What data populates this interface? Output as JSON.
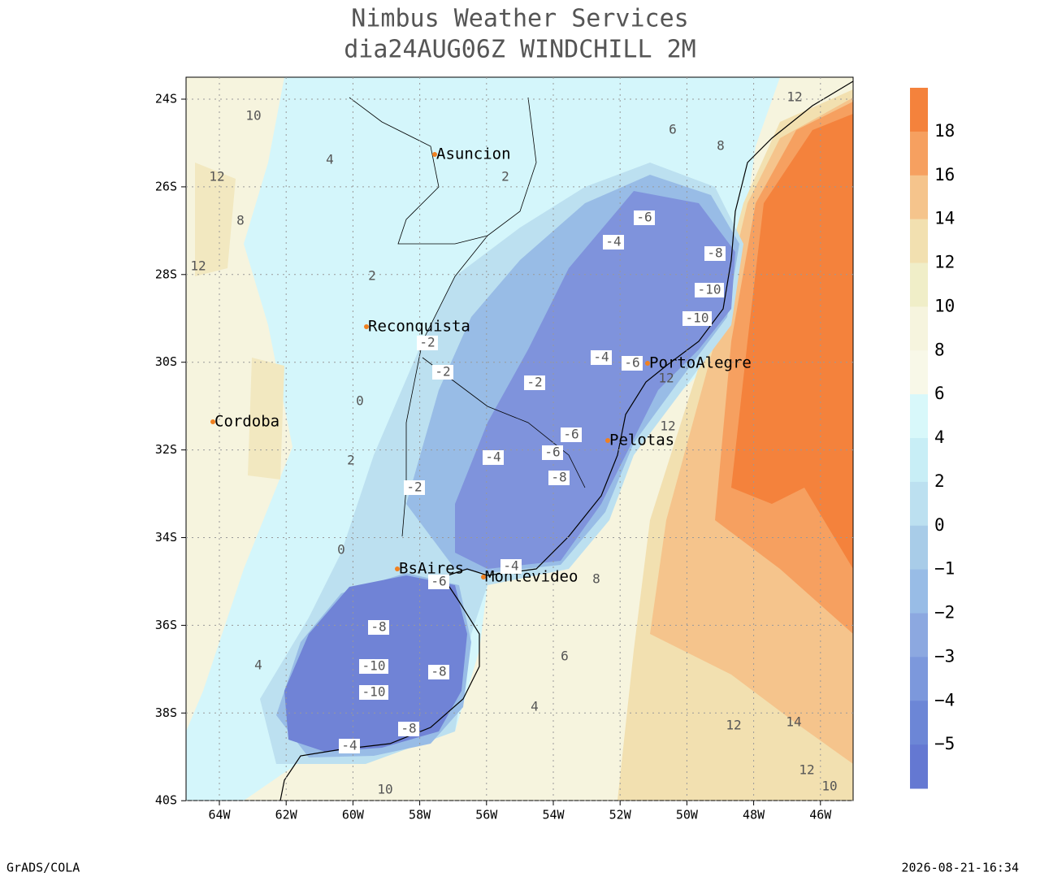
{
  "header": {
    "title": "Nimbus Weather Services",
    "subtitle": "dia24AUG06Z WINDCHILL 2M"
  },
  "map": {
    "lat_ticks": [
      "24S",
      "26S",
      "28S",
      "30S",
      "32S",
      "34S",
      "36S",
      "38S",
      "40S"
    ],
    "lon_ticks": [
      "64W",
      "62W",
      "60W",
      "58W",
      "56W",
      "54W",
      "52W",
      "50W",
      "48W",
      "46W"
    ],
    "cities": [
      "Asuncion",
      "Reconquista",
      "Cordoba",
      "PortoAlegre",
      "Pelotas",
      "BsAires",
      "Montevideo"
    ],
    "contour_labels": [
      "-6",
      "-4",
      "-8",
      "-10",
      "-10",
      "-2",
      "-2",
      "-2",
      "-4",
      "-6",
      "-6",
      "-4",
      "-6",
      "-8",
      "-2",
      "-4",
      "-6",
      "-8",
      "-10",
      "-10",
      "-8",
      "-8",
      "-4",
      "2",
      "4",
      "10",
      "12",
      "8",
      "12",
      "2",
      "0",
      "2",
      "0",
      "4",
      "8",
      "6",
      "4",
      "12",
      "14",
      "12",
      "10",
      "12",
      "6",
      "8",
      "12",
      "12",
      "10"
    ]
  },
  "colorbar": {
    "labels": [
      "18",
      "16",
      "14",
      "12",
      "10",
      "8",
      "6",
      "4",
      "2",
      "0",
      "−1",
      "−2",
      "−3",
      "−4",
      "−5"
    ],
    "colors": [
      "#f4823c",
      "#f6a060",
      "#f5c48c",
      "#f2e0b0",
      "#f0eec8",
      "#f6f4de",
      "#f8f8e8",
      "#d8f8fa",
      "#c8eef6",
      "#bce0f0",
      "#a8cce8",
      "#98bce6",
      "#8ca8e0",
      "#7c98dc",
      "#6c86d6",
      "#6478d2"
    ]
  },
  "footer": {
    "left": "GrADS/COLA",
    "right": "2026-08-21-16:34"
  }
}
